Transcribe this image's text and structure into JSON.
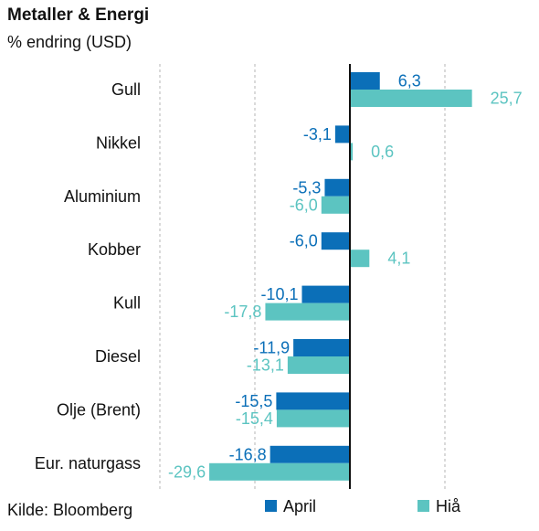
{
  "header": {
    "title": "Metaller & Energi",
    "subtitle": "% endring (USD)"
  },
  "footer": {
    "source": "Kilde: Bloomberg"
  },
  "colors": {
    "april": "#0b6fb8",
    "hia": "#5cc4c1",
    "grid": "#b5b5b5",
    "axis": "#111111"
  },
  "chart_data": {
    "type": "bar",
    "orientation": "horizontal",
    "title": "Metaller & Energi",
    "subtitle": "% endring (USD)",
    "categories": [
      "Gull",
      "Nikkel",
      "Aluminium",
      "Kobber",
      "Kull",
      "Diesel",
      "Olje (Brent)",
      "Eur. naturgass"
    ],
    "series": [
      {
        "name": "April",
        "values": [
          6.3,
          -3.1,
          -5.3,
          -6.0,
          -10.1,
          -11.9,
          -15.5,
          -16.8
        ],
        "labels": [
          "6,3",
          "-3,1",
          "-5,3",
          "-6,0",
          "-10,1",
          "-11,9",
          "-15,5",
          "-16,8"
        ]
      },
      {
        "name": "Hiå",
        "values": [
          25.7,
          0.6,
          -6.0,
          4.1,
          -17.8,
          -13.1,
          -15.4,
          -29.6
        ],
        "labels": [
          "25,7",
          "0,6",
          "-6,0",
          "4,1",
          "-17,8",
          "-13,1",
          "-15,4",
          "-29,6"
        ]
      }
    ],
    "xlim": [
      -40,
      40
    ],
    "gridlines": [
      -40,
      -20,
      20,
      40
    ],
    "grid": true,
    "gridStyle": "dashed",
    "legend": "bottom"
  }
}
